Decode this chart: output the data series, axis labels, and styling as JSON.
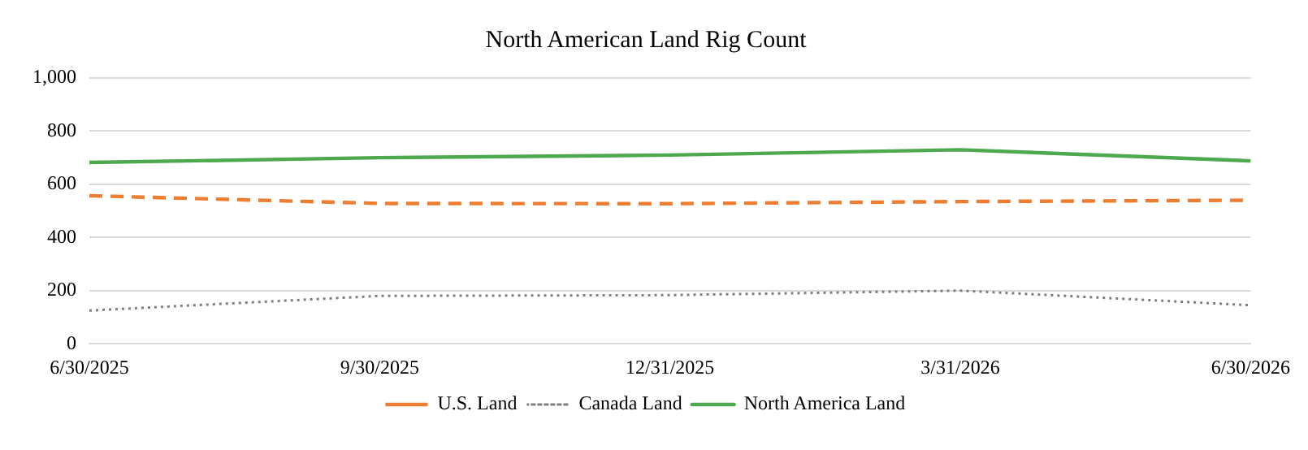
{
  "chart_data": {
    "type": "line",
    "title": "North American Land Rig Count",
    "categories": [
      "6/30/2025",
      "9/30/2025",
      "12/31/2025",
      "3/31/2026",
      "6/30/2026"
    ],
    "series": [
      {
        "name": "U.S. Land",
        "color": "#ed7d31",
        "line_style": "dashed",
        "values": [
          557,
          528,
          527,
          535,
          540
        ]
      },
      {
        "name": "Canada Land",
        "color": "#7f7f7f",
        "line_style": "dotted",
        "values": [
          125,
          180,
          183,
          200,
          145
        ]
      },
      {
        "name": "North America Land",
        "color": "#4ea84e",
        "line_style": "solid",
        "values": [
          682,
          700,
          710,
          730,
          688
        ]
      }
    ],
    "ylim": [
      0,
      1000
    ],
    "yticks": [
      0,
      200,
      400,
      600,
      800,
      {
        "value": 1000,
        "label": "1,000"
      }
    ],
    "grid": "y",
    "legend": "bottom",
    "marker": "none"
  }
}
